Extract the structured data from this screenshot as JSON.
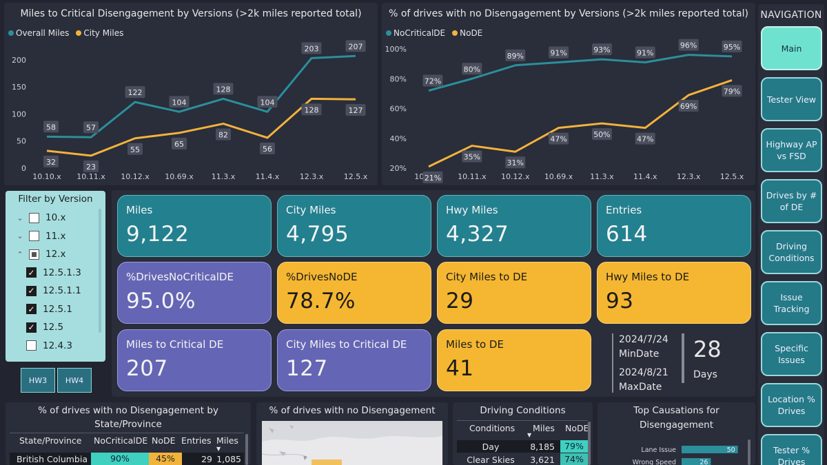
{
  "chart1": {
    "title": "Miles to Critical Disengagement by Versions (>2k miles reported total)",
    "legend": [
      "Overall Miles",
      "City Miles"
    ],
    "colors": {
      "overall": "#2b8f9c",
      "city": "#f2b33c"
    },
    "y_ticks": [
      "0",
      "50",
      "100",
      "150",
      "200"
    ],
    "ylim": [
      0,
      215
    ]
  },
  "chart2": {
    "title": "% of drives with no Disengagement by Versions (>2k miles reported total)",
    "legend": [
      "NoCriticalDE",
      "NoDE"
    ],
    "colors": {
      "nocrit": "#2b8f9c",
      "node": "#f2b33c"
    },
    "y_ticks": [
      "20%",
      "40%",
      "60%",
      "80%",
      "100%"
    ],
    "ylim": [
      20,
      100
    ]
  },
  "chart_data": [
    {
      "type": "line",
      "categories": [
        "10.10.x",
        "10.11.x",
        "10.12.x",
        "10.69.x",
        "11.3.x",
        "11.4.x",
        "12.3.x",
        "12.5.x"
      ],
      "series": [
        {
          "name": "Overall Miles",
          "values": [
            58,
            57,
            122,
            104,
            128,
            104,
            203,
            207
          ]
        },
        {
          "name": "City Miles",
          "values": [
            32,
            23,
            55,
            65,
            82,
            56,
            128,
            127
          ]
        }
      ]
    },
    {
      "type": "line",
      "categories": [
        "10.10.x",
        "10.11.x",
        "10.12.x",
        "10.69.x",
        "11.3.x",
        "11.4.x",
        "12.3.x",
        "12.5.x"
      ],
      "series": [
        {
          "name": "NoCriticalDE",
          "values": [
            72,
            80,
            89,
            91,
            93,
            91,
            96,
            95
          ]
        },
        {
          "name": "NoDE",
          "values": [
            21,
            35,
            31,
            47,
            50,
            47,
            69,
            79
          ]
        }
      ]
    }
  ],
  "filter": {
    "title": "Filter by Version",
    "items": [
      {
        "label": "10.x",
        "chev": "⌄",
        "state": ""
      },
      {
        "label": "11.x",
        "chev": "⌄",
        "state": ""
      },
      {
        "label": "12.x",
        "chev": "⌃",
        "state": "partial"
      },
      {
        "label": "12.5.1.3",
        "chev": "",
        "state": "checked"
      },
      {
        "label": "12.5.1.1",
        "chev": "",
        "state": "checked"
      },
      {
        "label": "12.5.1",
        "chev": "",
        "state": "checked"
      },
      {
        "label": "12.5",
        "chev": "",
        "state": "checked"
      },
      {
        "label": "12.4.3",
        "chev": "",
        "state": ""
      }
    ],
    "hw": [
      "HW3",
      "HW4"
    ]
  },
  "kpis": [
    {
      "label": "Miles",
      "value": "9,122",
      "style": "teal"
    },
    {
      "label": "City Miles",
      "value": "4,795",
      "style": "teal"
    },
    {
      "label": "Hwy Miles",
      "value": "4,327",
      "style": "teal"
    },
    {
      "label": "Entries",
      "value": "614",
      "style": "teal"
    },
    {
      "label": "%DrivesNoCriticalDE",
      "value": "95.0%",
      "style": "purple"
    },
    {
      "label": "%DrivesNoDE",
      "value": "78.7%",
      "style": "amber"
    },
    {
      "label": "City Miles to DE",
      "value": "29",
      "style": "amber"
    },
    {
      "label": "Hwy Miles to DE",
      "value": "93",
      "style": "amber"
    },
    {
      "label": "Miles to Critical DE",
      "value": "207",
      "style": "purple"
    },
    {
      "label": "City Miles to Critical DE",
      "value": "127",
      "style": "purple"
    },
    {
      "label": "Miles to DE",
      "value": "41",
      "style": "amber"
    }
  ],
  "dates": {
    "min": "2024/7/24",
    "min_label": "MinDate",
    "max": "2024/8/21",
    "max_label": "MaxDate",
    "days": "28",
    "days_label": "Days"
  },
  "nav": {
    "title": "NAVIGATION",
    "items": [
      "Main",
      "Tester View",
      "Highway AP vs FSD",
      "Drives by # of DE",
      "Driving Conditions",
      "Issue Tracking",
      "Specific Issues",
      "Location % Drives",
      "Tester % Drives"
    ]
  },
  "state_table": {
    "title": "% of drives with no Disengagement by State/Province",
    "headers": [
      "State/Province",
      "NoCriticalDE",
      "NoDE",
      "Entries",
      "Miles"
    ],
    "rows": [
      [
        "British Columbia",
        "90%",
        "45%",
        "29",
        "1,085"
      ]
    ]
  },
  "map": {
    "title": "% of drives with no Disengagement"
  },
  "conditions": {
    "title": "Driving Conditions",
    "headers": [
      "Conditions",
      "Miles",
      "NoDE"
    ],
    "rows": [
      [
        "Day",
        "8,185",
        "79%"
      ],
      [
        "Clear Skies",
        "3,621",
        "74%"
      ]
    ]
  },
  "causes": {
    "title": "Top Causations for Disengagement",
    "items": [
      {
        "label": "Lane Issue",
        "value": 50
      },
      {
        "label": "Wrong Speed",
        "value": 26
      }
    ]
  }
}
